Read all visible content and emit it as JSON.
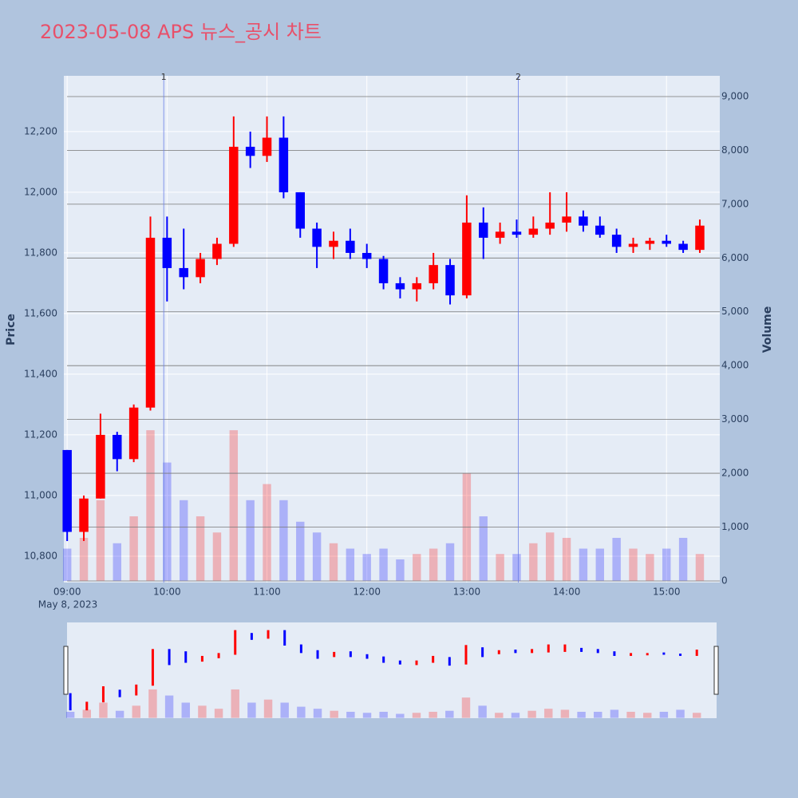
{
  "chart_data": {
    "type": "candlestick",
    "title": "2023-05-08 APS 뉴스_공시 차트",
    "ylabel": "Price",
    "y2label": "Volume",
    "date_label": "May 8, 2023",
    "increasing_color": "#ff0000",
    "decreasing_color": "#0000ff",
    "x": [
      "09:00",
      "09:10",
      "09:20",
      "09:30",
      "09:40",
      "09:50",
      "10:00",
      "10:10",
      "10:20",
      "10:30",
      "10:40",
      "10:50",
      "11:00",
      "11:10",
      "11:20",
      "11:30",
      "11:40",
      "11:50",
      "12:00",
      "12:10",
      "12:20",
      "12:30",
      "12:40",
      "12:50",
      "13:00",
      "13:10",
      "13:20",
      "13:30",
      "13:40",
      "13:50",
      "14:00",
      "14:10",
      "14:20",
      "14:30",
      "14:40",
      "14:50",
      "15:00",
      "15:10",
      "15:20"
    ],
    "open": [
      11150,
      10880,
      10990,
      11200,
      11120,
      11290,
      11850,
      11750,
      11720,
      11780,
      11830,
      12150,
      12120,
      12180,
      12000,
      11880,
      11820,
      11840,
      11800,
      11780,
      11700,
      11680,
      11700,
      11760,
      11660,
      11900,
      11850,
      11870,
      11860,
      11880,
      11900,
      11920,
      11890,
      11860,
      11820,
      11830,
      11840,
      11830,
      11810
    ],
    "high": [
      11150,
      11000,
      11270,
      11210,
      11300,
      11920,
      11920,
      11880,
      11800,
      11850,
      12250,
      12200,
      12250,
      12250,
      12000,
      11900,
      11870,
      11880,
      11830,
      11790,
      11720,
      11720,
      11800,
      11780,
      11990,
      11950,
      11900,
      11910,
      11920,
      12000,
      12000,
      11940,
      11920,
      11880,
      11850,
      11850,
      11860,
      11840,
      11910
    ],
    "low": [
      10850,
      10850,
      10990,
      11080,
      11110,
      11280,
      11640,
      11680,
      11700,
      11760,
      11820,
      12080,
      12100,
      11980,
      11850,
      11750,
      11780,
      11780,
      11750,
      11680,
      11650,
      11640,
      11680,
      11630,
      11650,
      11780,
      11830,
      11850,
      11850,
      11860,
      11870,
      11870,
      11850,
      11800,
      11800,
      11810,
      11820,
      11800,
      11800
    ],
    "close": [
      10880,
      10990,
      11200,
      11120,
      11290,
      11850,
      11750,
      11720,
      11780,
      11830,
      12150,
      12120,
      12180,
      12000,
      11880,
      11820,
      11840,
      11800,
      11780,
      11700,
      11680,
      11700,
      11760,
      11660,
      11900,
      11850,
      11870,
      11860,
      11880,
      11900,
      11920,
      11890,
      11860,
      11820,
      11830,
      11840,
      11830,
      11810,
      11890
    ],
    "volume": [
      600,
      800,
      1500,
      700,
      1200,
      2800,
      2200,
      1500,
      1200,
      900,
      2800,
      1500,
      1800,
      1500,
      1100,
      900,
      700,
      600,
      500,
      600,
      400,
      500,
      600,
      700,
      2000,
      1200,
      500,
      500,
      700,
      900,
      800,
      600,
      600,
      800,
      600,
      500,
      600,
      800,
      500
    ],
    "events": [
      {
        "x": "09:58",
        "label": "1"
      },
      {
        "x": "13:31",
        "label": "2"
      }
    ],
    "xlim": [
      "08:58",
      "15:32"
    ],
    "xticks": [
      "09:00",
      "10:00",
      "11:00",
      "12:00",
      "13:00",
      "14:00",
      "15:00"
    ],
    "ylim": [
      10713,
      12384
    ],
    "yticks": [
      {
        "value": 10800,
        "label": "10,800"
      },
      {
        "value": 11000,
        "label": "11,000"
      },
      {
        "value": 11200,
        "label": "11,200"
      },
      {
        "value": 11400,
        "label": "11,400"
      },
      {
        "value": 11600,
        "label": "11,600"
      },
      {
        "value": 11800,
        "label": "11,800"
      },
      {
        "value": 12000,
        "label": "12,000"
      },
      {
        "value": 12200,
        "label": "12,200"
      }
    ],
    "y2lim": [
      -30,
      9385
    ],
    "y2ticks": [
      0,
      {
        "value": 1000,
        "label": "1,000"
      },
      {
        "value": 2000,
        "label": "2,000"
      },
      {
        "value": 3000,
        "label": "3,000"
      },
      {
        "value": 4000,
        "label": "4,000"
      },
      {
        "value": 5000,
        "label": "5,000"
      },
      {
        "value": 6000,
        "label": "6,000"
      },
      {
        "value": 7000,
        "label": "7,000"
      },
      {
        "value": 8000,
        "label": "8,000"
      },
      {
        "value": 9000,
        "label": "9,000"
      }
    ],
    "grid": true
  }
}
